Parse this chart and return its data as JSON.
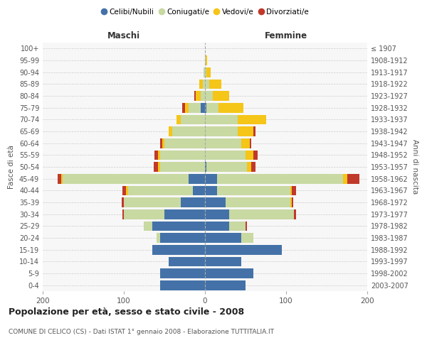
{
  "age_groups": [
    "0-4",
    "5-9",
    "10-14",
    "15-19",
    "20-24",
    "25-29",
    "30-34",
    "35-39",
    "40-44",
    "45-49",
    "50-54",
    "55-59",
    "60-64",
    "65-69",
    "70-74",
    "75-79",
    "80-84",
    "85-89",
    "90-94",
    "95-99",
    "100+"
  ],
  "birth_years": [
    "2003-2007",
    "1998-2002",
    "1993-1997",
    "1988-1992",
    "1983-1987",
    "1978-1982",
    "1973-1977",
    "1968-1972",
    "1963-1967",
    "1958-1962",
    "1953-1957",
    "1948-1952",
    "1943-1947",
    "1938-1942",
    "1933-1937",
    "1928-1932",
    "1923-1927",
    "1918-1922",
    "1913-1917",
    "1908-1912",
    "≤ 1907"
  ],
  "males": {
    "celibe": [
      55,
      55,
      45,
      65,
      55,
      65,
      50,
      30,
      15,
      20,
      0,
      0,
      0,
      0,
      0,
      5,
      0,
      0,
      0,
      0,
      0
    ],
    "coniugato": [
      0,
      0,
      0,
      0,
      5,
      10,
      50,
      70,
      80,
      155,
      55,
      55,
      50,
      40,
      30,
      15,
      5,
      3,
      2,
      0,
      0
    ],
    "vedovo": [
      0,
      0,
      0,
      0,
      0,
      0,
      0,
      0,
      2,
      2,
      3,
      3,
      3,
      5,
      5,
      5,
      6,
      4,
      0,
      0,
      0
    ],
    "divorziato": [
      0,
      0,
      0,
      0,
      0,
      0,
      2,
      3,
      5,
      5,
      5,
      4,
      2,
      0,
      0,
      3,
      2,
      0,
      0,
      0,
      0
    ]
  },
  "females": {
    "nubile": [
      50,
      60,
      45,
      95,
      45,
      30,
      30,
      25,
      15,
      15,
      2,
      0,
      0,
      0,
      0,
      2,
      0,
      0,
      0,
      0,
      0
    ],
    "coniugata": [
      0,
      0,
      0,
      0,
      15,
      20,
      80,
      80,
      90,
      155,
      50,
      50,
      45,
      40,
      40,
      15,
      10,
      5,
      2,
      1,
      0
    ],
    "vedova": [
      0,
      0,
      0,
      0,
      0,
      0,
      0,
      2,
      2,
      5,
      5,
      10,
      10,
      20,
      35,
      30,
      20,
      15,
      5,
      2,
      0
    ],
    "divorziata": [
      0,
      0,
      0,
      0,
      0,
      2,
      2,
      2,
      5,
      15,
      5,
      5,
      2,
      2,
      0,
      0,
      0,
      0,
      0,
      0,
      0
    ]
  },
  "colors": {
    "celibe": "#4472a8",
    "coniugato": "#c8d9a2",
    "vedovo": "#f5c518",
    "divorziato": "#c0392b"
  },
  "legend_labels": [
    "Celibi/Nubili",
    "Coniugati/e",
    "Vedovi/e",
    "Divorziati/e"
  ],
  "xlim": 200,
  "title": "Popolazione per età, sesso e stato civile - 2008",
  "subtitle": "COMUNE DI CELICO (CS) - Dati ISTAT 1° gennaio 2008 - Elaborazione TUTTITALIA.IT",
  "xlabel_left": "Maschi",
  "xlabel_right": "Femmine",
  "ylabel_left": "Fasce di età",
  "ylabel_right": "Anni di nascita",
  "bg_color": "#ffffff",
  "plot_bg": "#f7f7f7",
  "grid_color": "#cccccc"
}
